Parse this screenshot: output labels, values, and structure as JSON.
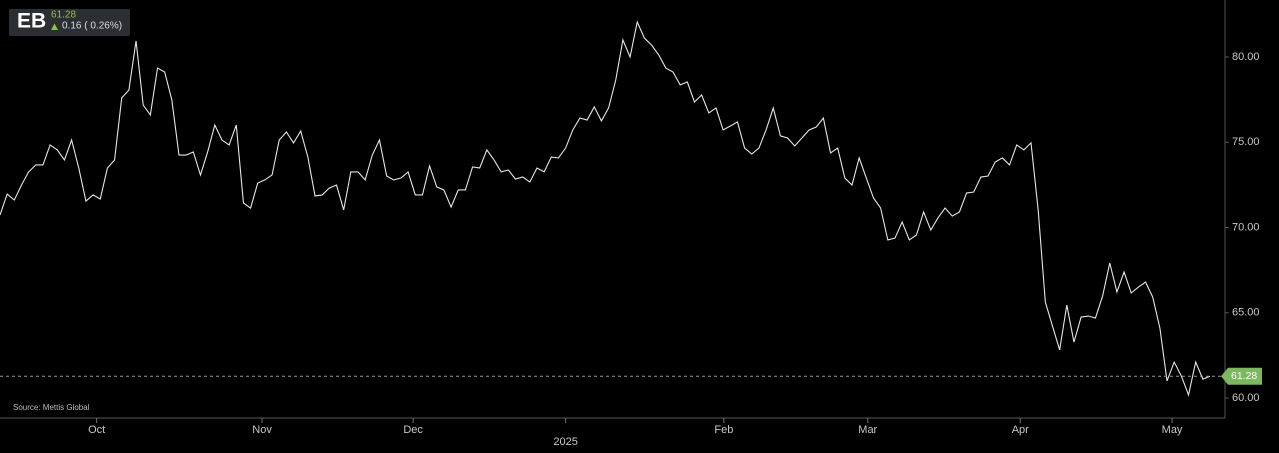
{
  "header": {
    "symbol": "EB",
    "price": 61.28,
    "change": "0.16 ( 0.26%)"
  },
  "source": "Source: Mettis Global",
  "chart_data": {
    "type": "line",
    "color": "#e6e6e6",
    "values": [
      70.73,
      71.96,
      71.61,
      72.49,
      73.26,
      73.67,
      73.67,
      74.84,
      74.55,
      73.96,
      75.13,
      73.49,
      71.55,
      71.91,
      71.67,
      73.49,
      73.96,
      77.6,
      78.06,
      80.94,
      77.18,
      76.6,
      79.35,
      79.12,
      77.48,
      74.25,
      74.25,
      74.43,
      73.08,
      74.43,
      76.01,
      75.13,
      74.84,
      76.01,
      71.44,
      71.14,
      72.61,
      72.79,
      73.08,
      75.13,
      75.6,
      74.96,
      75.66,
      74.13,
      71.85,
      71.91,
      72.32,
      72.49,
      71.03,
      73.26,
      73.26,
      72.79,
      74.25,
      75.13,
      73.02,
      72.79,
      72.9,
      73.26,
      71.91,
      71.91,
      73.61,
      72.38,
      72.2,
      71.2,
      72.2,
      72.2,
      73.55,
      73.49,
      74.55,
      73.96,
      73.26,
      73.37,
      72.84,
      72.96,
      72.67,
      73.49,
      73.26,
      74.13,
      74.08,
      74.66,
      75.72,
      76.42,
      76.3,
      77.07,
      76.25,
      77.01,
      78.65,
      81.0,
      80.0,
      82.05,
      81.11,
      80.7,
      80.12,
      79.35,
      79.12,
      78.36,
      78.53,
      77.36,
      77.77,
      76.72,
      77.01,
      75.72,
      75.95,
      76.19,
      74.66,
      74.31,
      74.66,
      75.72,
      77.01,
      75.37,
      75.25,
      74.78,
      75.25,
      75.72,
      75.89,
      76.42,
      74.37,
      74.66,
      72.9,
      72.49,
      74.08,
      72.9,
      71.73,
      71.14,
      69.27,
      69.38,
      70.32,
      69.27,
      69.56,
      70.91,
      69.85,
      70.56,
      71.14,
      70.67,
      70.91,
      72.02,
      72.08,
      72.96,
      73.02,
      73.84,
      74.08,
      73.67,
      74.84,
      74.55,
      74.96,
      71.03,
      65.63,
      64.22,
      62.82,
      65.45,
      63.28,
      64.75,
      64.81,
      64.69,
      65.98,
      67.92,
      66.22,
      67.39,
      66.16,
      66.51,
      66.8,
      65.92,
      64.11,
      61.0,
      62.11,
      61.29,
      60.18,
      62.11,
      61.11,
      61.28
    ],
    "xlim": [
      0,
      169
    ],
    "xticks": [
      {
        "value": 13.5,
        "label": "Oct"
      },
      {
        "value": 36.6,
        "label": "Nov"
      },
      {
        "value": 57.7,
        "label": "Dec"
      },
      {
        "value": 79,
        "label": "2025"
      },
      {
        "value": 101.1,
        "label": "Feb"
      },
      {
        "value": 121.2,
        "label": "Mar"
      },
      {
        "value": 142.5,
        "label": "Apr"
      },
      {
        "value": 163.7,
        "label": "May"
      }
    ],
    "ylim": [
      58.83,
      83.34
    ],
    "yticks": [
      {
        "value": 60,
        "label": "60.00"
      },
      {
        "value": 65,
        "label": "65.00"
      },
      {
        "value": 70,
        "label": "70.00"
      },
      {
        "value": 75,
        "label": "75.00"
      },
      {
        "value": 80,
        "label": "80.00"
      }
    ]
  }
}
